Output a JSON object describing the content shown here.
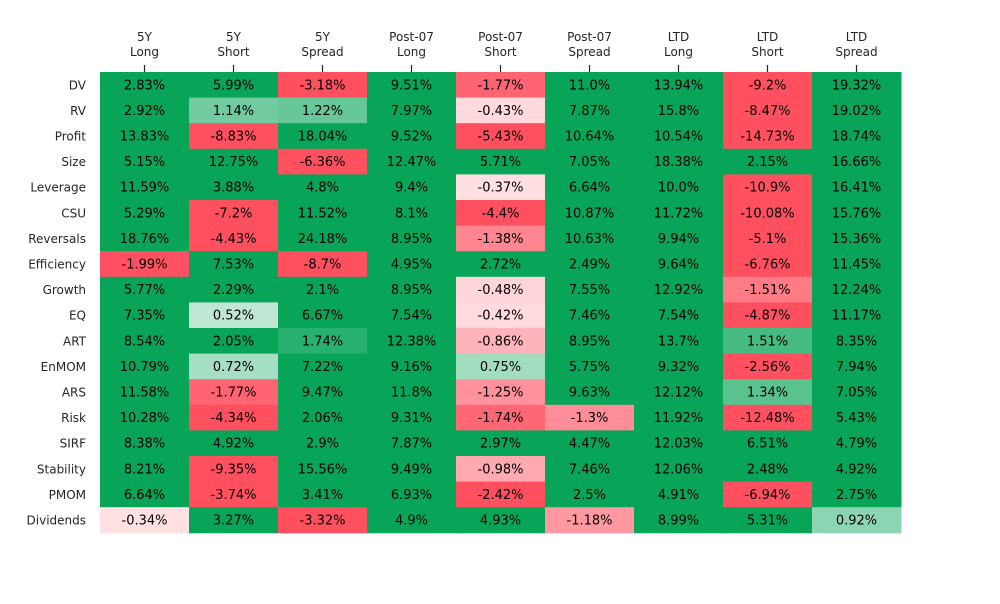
{
  "chart_data": {
    "type": "heatmap",
    "title": "",
    "xlabel": "",
    "ylabel": "",
    "columns": [
      [
        "5Y",
        "Long"
      ],
      [
        "5Y",
        "Short"
      ],
      [
        "5Y",
        "Spread"
      ],
      [
        "Post-07",
        "Long"
      ],
      [
        "Post-07",
        "Short"
      ],
      [
        "Post-07",
        "Spread"
      ],
      [
        "LTD",
        "Long"
      ],
      [
        "LTD",
        "Short"
      ],
      [
        "LTD",
        "Spread"
      ]
    ],
    "rows": [
      "DV",
      "RV",
      "Profit",
      "Size",
      "Leverage",
      "CSU",
      "Reversals",
      "Efficiency",
      "Growth",
      "EQ",
      "ART",
      "EnMOM",
      "ARS",
      "Risk",
      "SIRF",
      "Stability",
      "PMOM",
      "Dividends"
    ],
    "values": [
      [
        "2.83%",
        "5.99%",
        "-3.18%",
        "9.51%",
        "-1.77%",
        "11.0%",
        "13.94%",
        "-9.2%",
        "19.32%"
      ],
      [
        "2.92%",
        "1.14%",
        "1.22%",
        "7.97%",
        "-0.43%",
        "7.87%",
        "15.8%",
        "-8.47%",
        "19.02%"
      ],
      [
        "13.83%",
        "-8.83%",
        "18.04%",
        "9.52%",
        "-5.43%",
        "10.64%",
        "10.54%",
        "-14.73%",
        "18.74%"
      ],
      [
        "5.15%",
        "12.75%",
        "-6.36%",
        "12.47%",
        "5.71%",
        "7.05%",
        "18.38%",
        "2.15%",
        "16.66%"
      ],
      [
        "11.59%",
        "3.88%",
        "4.8%",
        "9.4%",
        "-0.37%",
        "6.64%",
        "10.0%",
        "-10.9%",
        "16.41%"
      ],
      [
        "5.29%",
        "-7.2%",
        "11.52%",
        "8.1%",
        "-4.4%",
        "10.87%",
        "11.72%",
        "-10.08%",
        "15.76%"
      ],
      [
        "18.76%",
        "-4.43%",
        "24.18%",
        "8.95%",
        "-1.38%",
        "10.63%",
        "9.94%",
        "-5.1%",
        "15.36%"
      ],
      [
        "-1.99%",
        "7.53%",
        "-8.7%",
        "4.95%",
        "2.72%",
        "2.49%",
        "9.64%",
        "-6.76%",
        "11.45%"
      ],
      [
        "5.77%",
        "2.29%",
        "2.1%",
        "8.95%",
        "-0.48%",
        "7.55%",
        "12.92%",
        "-1.51%",
        "12.24%"
      ],
      [
        "7.35%",
        "0.52%",
        "6.67%",
        "7.54%",
        "-0.42%",
        "7.46%",
        "7.54%",
        "-4.87%",
        "11.17%"
      ],
      [
        "8.54%",
        "2.05%",
        "1.74%",
        "12.38%",
        "-0.86%",
        "8.95%",
        "13.7%",
        "1.51%",
        "8.35%"
      ],
      [
        "10.79%",
        "0.72%",
        "7.22%",
        "9.16%",
        "0.75%",
        "5.75%",
        "9.32%",
        "-2.56%",
        "7.94%"
      ],
      [
        "11.58%",
        "-1.77%",
        "9.47%",
        "11.8%",
        "-1.25%",
        "9.63%",
        "12.12%",
        "1.34%",
        "7.05%"
      ],
      [
        "10.28%",
        "-4.34%",
        "2.06%",
        "9.31%",
        "-1.74%",
        "-1.3%",
        "11.92%",
        "-12.48%",
        "5.43%"
      ],
      [
        "8.38%",
        "4.92%",
        "2.9%",
        "7.87%",
        "2.97%",
        "4.47%",
        "12.03%",
        "6.51%",
        "4.79%"
      ],
      [
        "8.21%",
        "-9.35%",
        "15.56%",
        "9.49%",
        "-0.98%",
        "7.46%",
        "12.06%",
        "2.48%",
        "4.92%"
      ],
      [
        "6.64%",
        "-3.74%",
        "3.41%",
        "6.93%",
        "-2.42%",
        "2.5%",
        "4.91%",
        "-6.94%",
        "2.75%"
      ],
      [
        "-0.34%",
        "3.27%",
        "-3.32%",
        "4.9%",
        "4.93%",
        "-1.18%",
        "8.99%",
        "5.31%",
        "0.92%"
      ]
    ],
    "color_scale": {
      "negative": "#ff5060",
      "neutral": "#ffffff",
      "positive": "#08a458",
      "saturation_value": 2.0
    },
    "legend": "none",
    "grid": false
  }
}
